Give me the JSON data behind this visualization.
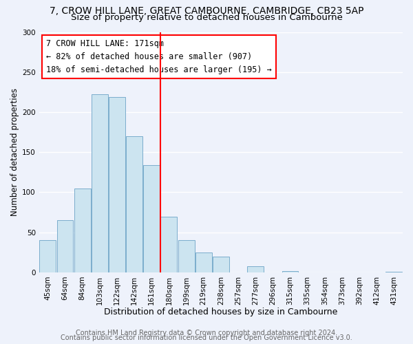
{
  "title": "7, CROW HILL LANE, GREAT CAMBOURNE, CAMBRIDGE, CB23 5AP",
  "subtitle": "Size of property relative to detached houses in Cambourne",
  "xlabel": "Distribution of detached houses by size in Cambourne",
  "ylabel": "Number of detached properties",
  "footer_line1": "Contains HM Land Registry data © Crown copyright and database right 2024.",
  "footer_line2": "Contains public sector information licensed under the Open Government Licence v3.0.",
  "bar_labels": [
    "45sqm",
    "64sqm",
    "84sqm",
    "103sqm",
    "122sqm",
    "142sqm",
    "161sqm",
    "180sqm",
    "199sqm",
    "219sqm",
    "238sqm",
    "257sqm",
    "277sqm",
    "296sqm",
    "315sqm",
    "335sqm",
    "354sqm",
    "373sqm",
    "392sqm",
    "412sqm",
    "431sqm"
  ],
  "bar_values": [
    40,
    65,
    105,
    222,
    219,
    170,
    134,
    69,
    40,
    25,
    20,
    0,
    8,
    0,
    2,
    0,
    0,
    0,
    0,
    0,
    1
  ],
  "bar_color": "#cce4f0",
  "bar_edge_color": "#7aadcc",
  "reference_line_index": 7,
  "reference_line_color": "red",
  "annotation_box_line1": "7 CROW HILL LANE: 171sqm",
  "annotation_box_line2": "← 82% of detached houses are smaller (907)",
  "annotation_box_line3": "18% of semi-detached houses are larger (195) →",
  "ylim": [
    0,
    300
  ],
  "yticks": [
    0,
    50,
    100,
    150,
    200,
    250,
    300
  ],
  "background_color": "#eef2fb",
  "title_fontsize": 10,
  "subtitle_fontsize": 9.5,
  "xlabel_fontsize": 9,
  "ylabel_fontsize": 8.5,
  "tick_fontsize": 7.5,
  "annotation_fontsize": 8.5,
  "footer_fontsize": 7
}
